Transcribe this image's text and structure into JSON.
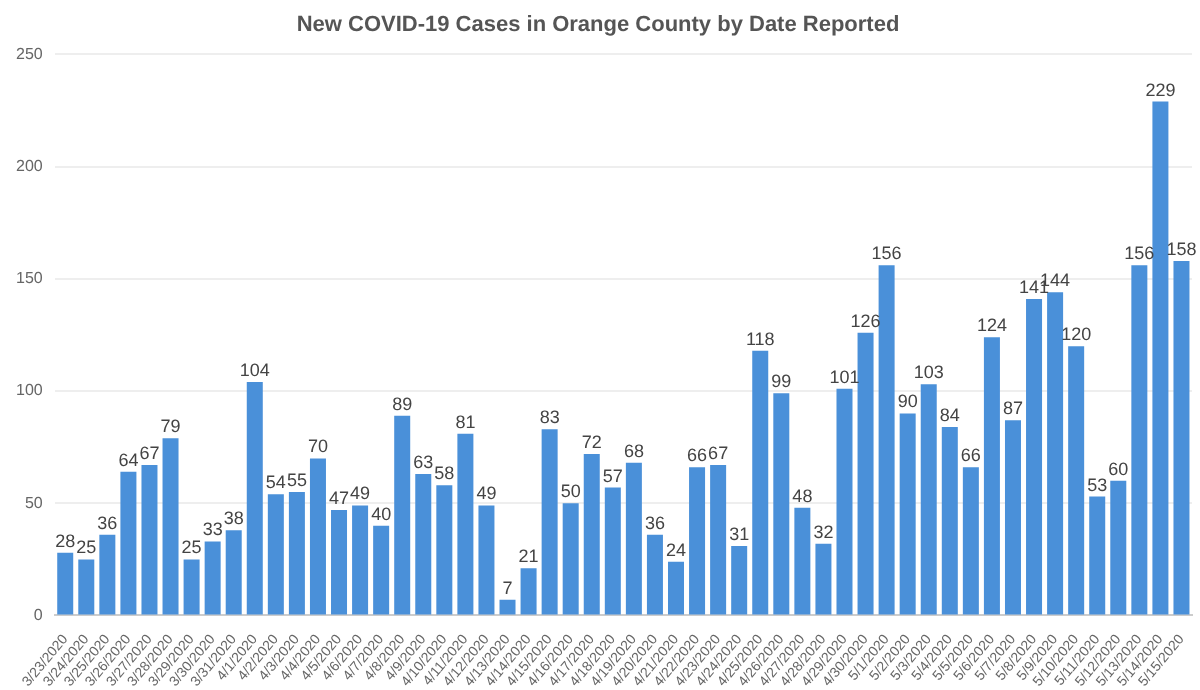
{
  "chart_data": {
    "type": "bar",
    "title": "New COVID-19 Cases in Orange County by Date Reported",
    "categories": [
      "3/23/2020",
      "3/24/2020",
      "3/25/2020",
      "3/26/2020",
      "3/27/2020",
      "3/28/2020",
      "3/29/2020",
      "3/30/2020",
      "3/31/2020",
      "4/1/2020",
      "4/2/2020",
      "4/3/2020",
      "4/4/2020",
      "4/5/2020",
      "4/6/2020",
      "4/7/2020",
      "4/8/2020",
      "4/9/2020",
      "4/10/2020",
      "4/11/2020",
      "4/12/2020",
      "4/13/2020",
      "4/14/2020",
      "4/15/2020",
      "4/16/2020",
      "4/17/2020",
      "4/18/2020",
      "4/19/2020",
      "4/20/2020",
      "4/21/2020",
      "4/22/2020",
      "4/23/2020",
      "4/24/2020",
      "4/25/2020",
      "4/26/2020",
      "4/27/2020",
      "4/28/2020",
      "4/29/2020",
      "4/30/2020",
      "5/1/2020",
      "5/2/2020",
      "5/3/2020",
      "5/4/2020",
      "5/5/2020",
      "5/6/2020",
      "5/7/2020",
      "5/8/2020",
      "5/9/2020",
      "5/10/2020",
      "5/11/2020",
      "5/12/2020",
      "5/13/2020",
      "5/14/2020",
      "5/15/2020"
    ],
    "values": [
      28,
      25,
      36,
      64,
      67,
      79,
      25,
      33,
      38,
      104,
      54,
      55,
      70,
      47,
      49,
      40,
      89,
      63,
      58,
      81,
      49,
      7,
      21,
      83,
      50,
      72,
      57,
      68,
      36,
      24,
      66,
      67,
      31,
      118,
      99,
      48,
      32,
      101,
      126,
      156,
      90,
      103,
      84,
      66,
      124,
      87,
      141,
      144,
      120,
      53,
      60,
      156,
      229,
      158
    ],
    "color": "#4a90d9",
    "ylim": [
      0,
      250
    ],
    "yticks": [
      0,
      50,
      100,
      150,
      200,
      250
    ],
    "grid": "y",
    "data_labels": true
  }
}
